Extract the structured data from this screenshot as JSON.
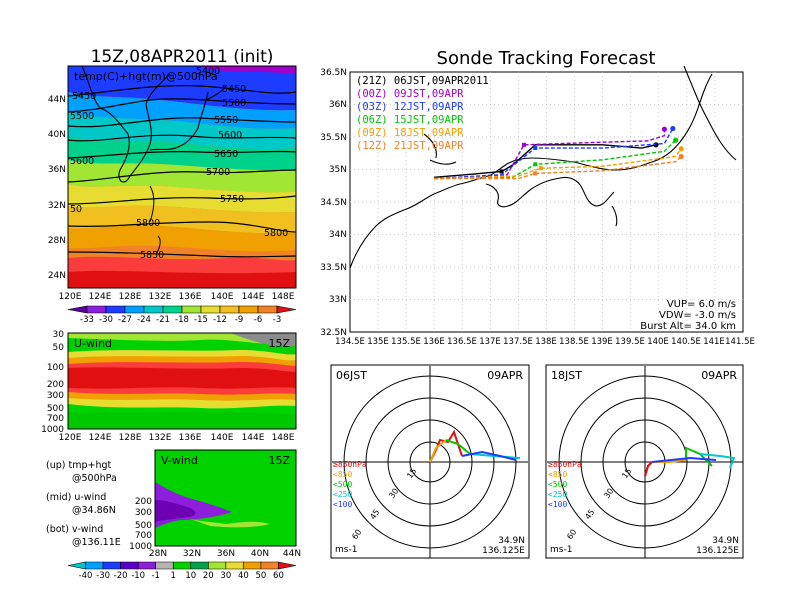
{
  "chart_data": [
    {
      "type": "heatmap",
      "title": "15Z,08APR2011 (init)",
      "overlay_label": "temp(C)+hgt(m)@500hPa",
      "x_ticks": [
        "120E",
        "124E",
        "128E",
        "132E",
        "136E",
        "140E",
        "144E",
        "148E"
      ],
      "y_ticks": [
        "44N",
        "40N",
        "36N",
        "32N",
        "28N",
        "24N"
      ],
      "contour_labels": [
        "5450",
        "5450",
        "5500",
        "5500",
        "5550",
        "5600",
        "5600",
        "5650",
        "5700",
        "5750",
        "5800",
        "5800",
        "5850",
        "50",
        "5400"
      ],
      "colorbar": [
        "-33",
        "-30",
        "-27",
        "-24",
        "-21",
        "-18",
        "-15",
        "-12",
        "-9",
        "-6",
        "-3"
      ]
    },
    {
      "type": "heatmap",
      "title": "U-wind",
      "time": "15Z",
      "x_ticks": [
        "120E",
        "124E",
        "128E",
        "132E",
        "136E",
        "140E",
        "144E",
        "148E"
      ],
      "y_ticks": [
        "30",
        "50",
        "100",
        "200",
        "300",
        "500",
        "700",
        "1000"
      ]
    },
    {
      "type": "heatmap",
      "title": "V-wind",
      "time": "15Z",
      "x_ticks": [
        "28N",
        "32N",
        "36N",
        "40N",
        "44N"
      ],
      "y_ticks": [
        "200",
        "300",
        "500",
        "700",
        "1000"
      ],
      "colorbar": [
        "-40",
        "-30",
        "-20",
        "-10",
        "-1",
        "1",
        "10",
        "20",
        "30",
        "40",
        "50",
        "60"
      ]
    },
    {
      "type": "line",
      "title": "Sonde Tracking Forecast",
      "x_ticks": [
        "134.5E",
        "135E",
        "135.5E",
        "136E",
        "136.5E",
        "137E",
        "137.5E",
        "138E",
        "138.5E",
        "139E",
        "139.5E",
        "140E",
        "140.5E",
        "141E",
        "141.5E"
      ],
      "y_ticks": [
        "36.5N",
        "36N",
        "35.5N",
        "35N",
        "34.5N",
        "34N",
        "33.5N",
        "33N",
        "32.5N"
      ],
      "xlim": [
        134.5,
        141.5
      ],
      "ylim": [
        32.5,
        36.5
      ],
      "legend": [
        {
          "label": "(21Z) 06JST,09APR2011",
          "color": "#000000"
        },
        {
          "label": "(00Z) 09JST,09APR",
          "color": "#a000c8"
        },
        {
          "label": "(03Z) 12JST,09APR",
          "color": "#1e3cff"
        },
        {
          "label": "(06Z) 15JST,09APR",
          "color": "#00c800"
        },
        {
          "label": "(09Z) 18JST,09APR",
          "color": "#f0a000"
        },
        {
          "label": "(12Z) 21JST,09APR",
          "color": "#f08228"
        }
      ],
      "series": [
        {
          "color": "#000000",
          "points": [
            [
              136.0,
              34.88
            ],
            [
              136.7,
              34.93
            ],
            [
              137.2,
              34.97
            ],
            [
              137.4,
              35.07
            ],
            [
              137.8,
              35.38
            ],
            [
              139.0,
              35.38
            ],
            [
              139.7,
              35.33
            ],
            [
              139.95,
              35.38
            ]
          ]
        },
        {
          "color": "#a000c8",
          "points": [
            [
              136.0,
              34.86
            ],
            [
              137.3,
              34.92
            ],
            [
              137.6,
              35.38
            ],
            [
              139.0,
              35.42
            ],
            [
              139.8,
              35.44
            ],
            [
              140.1,
              35.52
            ],
            [
              140.1,
              35.62
            ]
          ]
        },
        {
          "color": "#1e3cff",
          "points": [
            [
              136.0,
              34.86
            ],
            [
              137.2,
              34.92
            ],
            [
              137.8,
              35.33
            ],
            [
              139.0,
              35.33
            ],
            [
              140.1,
              35.4
            ],
            [
              140.25,
              35.63
            ]
          ]
        },
        {
          "color": "#00c800",
          "points": [
            [
              136.0,
              34.86
            ],
            [
              137.4,
              34.88
            ],
            [
              137.8,
              35.08
            ],
            [
              139.0,
              35.15
            ],
            [
              140.1,
              35.28
            ],
            [
              140.3,
              35.45
            ]
          ]
        },
        {
          "color": "#f0a000",
          "points": [
            [
              136.0,
              34.86
            ],
            [
              137.5,
              34.9
            ],
            [
              137.9,
              35.02
            ],
            [
              139.0,
              35.05
            ],
            [
              140.3,
              35.2
            ],
            [
              140.4,
              35.32
            ]
          ]
        },
        {
          "color": "#f08228",
          "points": [
            [
              136.0,
              34.86
            ],
            [
              137.5,
              34.86
            ],
            [
              137.8,
              34.94
            ],
            [
              139.0,
              34.98
            ],
            [
              140.3,
              35.12
            ],
            [
              140.4,
              35.2
            ]
          ]
        }
      ],
      "notes": [
        "VUP= 6.0 m/s",
        "VDW= -3.0 m/s",
        "Burst Alt= 34.0 km"
      ]
    },
    {
      "type": "scatter",
      "title": "06JST",
      "date": "09APR",
      "ring_labels": [
        "15",
        "30",
        "45",
        "60"
      ],
      "levels": [
        "≥850hPa",
        "<850",
        "<500",
        "<250",
        "<100"
      ],
      "level_colors": [
        "#e01010",
        "#f0a000",
        "#00c800",
        "#00c8c8",
        "#1e3cff"
      ],
      "unit": "ms-1",
      "location": [
        "34.9N",
        "136.125E"
      ]
    },
    {
      "type": "scatter",
      "title": "18JST",
      "date": "09APR",
      "ring_labels": [
        "15",
        "30",
        "45",
        "60"
      ],
      "levels": [
        "≥850hPa",
        "<850",
        "<500",
        "<250",
        "<100"
      ],
      "level_colors": [
        "#e01010",
        "#f0a000",
        "#00c800",
        "#00c8c8",
        "#1e3cff"
      ],
      "unit": "ms-1",
      "location": [
        "34.9N",
        "136.125E"
      ]
    }
  ],
  "legend_text": [
    "(up) tmp+hgt",
    "@500hPa",
    "(mid) u-wind",
    "@34.86N",
    "(bot) v-wind",
    "@136.11E"
  ]
}
